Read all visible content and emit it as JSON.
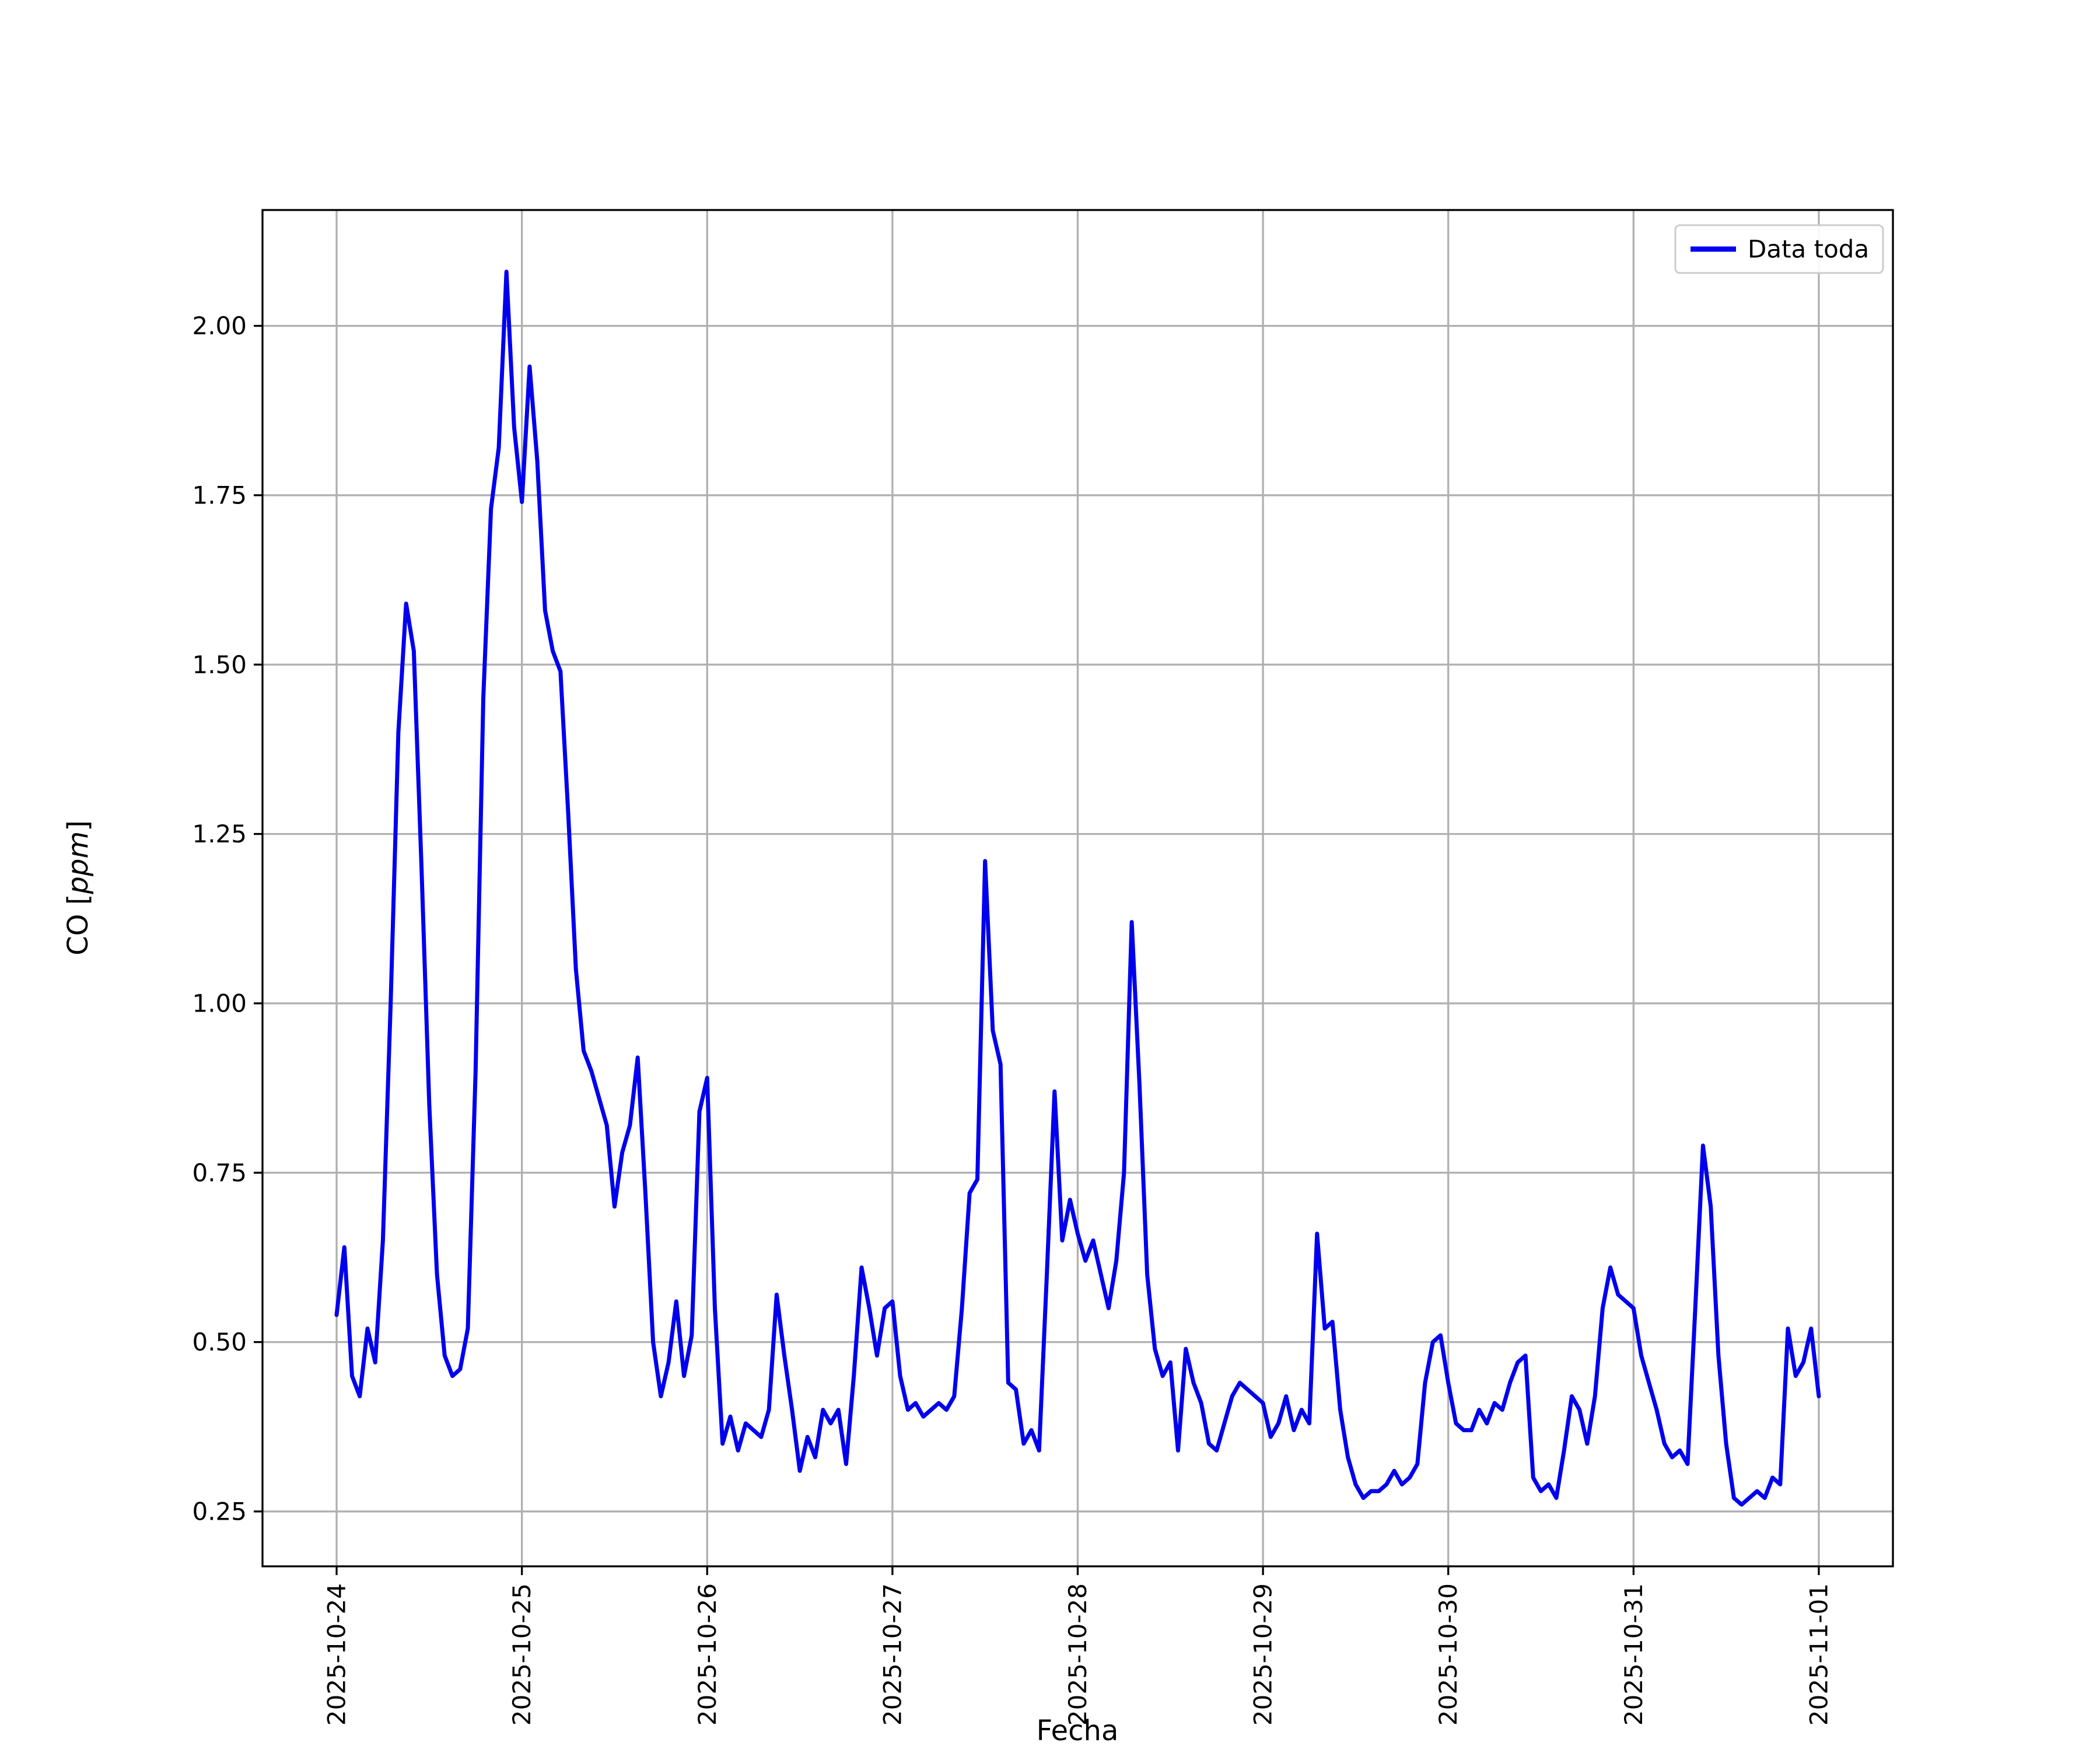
{
  "figure": {
    "background": "#ffffff",
    "xlabel": "Fecha",
    "ylabel_prefix": "CO [",
    "ylabel_italic": "ppm",
    "ylabel_suffix": "]",
    "legend": {
      "label": "Data toda"
    }
  },
  "chart_data": {
    "type": "line",
    "title": "",
    "xlabel": "Fecha",
    "ylabel": "CO [ppm]",
    "legend_position": "upper right",
    "grid": true,
    "series_name": "Data toda",
    "line_color": "#0000ee",
    "grid_color": "#b0b0b0",
    "spine_color": "#000000",
    "x_start": "2025-10-24 00:00",
    "x_step_hours": 1,
    "x_tick_hours": [
      0,
      24,
      48,
      72,
      96,
      120,
      144,
      168,
      192
    ],
    "x_tick_labels": [
      "2025-10-24",
      "2025-10-25",
      "2025-10-26",
      "2025-10-27",
      "2025-10-28",
      "2025-10-29",
      "2025-10-30",
      "2025-10-31",
      "2025-11-01"
    ],
    "y_ticks": [
      0.25,
      0.5,
      0.75,
      1.0,
      1.25,
      1.5,
      1.75,
      2.0
    ],
    "xlim_hours": [
      -9.6,
      201.6
    ],
    "ylim": [
      0.169,
      2.171
    ],
    "values": [
      0.54,
      0.64,
      0.45,
      0.42,
      0.52,
      0.47,
      0.65,
      1.0,
      1.4,
      1.59,
      1.52,
      1.2,
      0.85,
      0.6,
      0.48,
      0.45,
      0.46,
      0.52,
      0.9,
      1.45,
      1.73,
      1.82,
      2.08,
      1.85,
      1.74,
      1.94,
      1.8,
      1.58,
      1.52,
      1.49,
      1.28,
      1.05,
      0.93,
      0.9,
      0.86,
      0.82,
      0.7,
      0.78,
      0.82,
      0.92,
      0.72,
      0.5,
      0.42,
      0.47,
      0.56,
      0.45,
      0.51,
      0.84,
      0.89,
      0.55,
      0.35,
      0.39,
      0.34,
      0.38,
      0.37,
      0.36,
      0.4,
      0.57,
      0.48,
      0.4,
      0.31,
      0.36,
      0.33,
      0.4,
      0.38,
      0.4,
      0.32,
      0.45,
      0.61,
      0.55,
      0.48,
      0.55,
      0.56,
      0.45,
      0.4,
      0.41,
      0.39,
      0.4,
      0.41,
      0.4,
      0.42,
      0.55,
      0.72,
      0.74,
      1.21,
      0.96,
      0.91,
      0.44,
      0.43,
      0.35,
      0.37,
      0.34,
      0.6,
      0.87,
      0.65,
      0.71,
      0.66,
      0.62,
      0.65,
      0.6,
      0.55,
      0.62,
      0.75,
      1.12,
      0.88,
      0.6,
      0.49,
      0.45,
      0.47,
      0.34,
      0.49,
      0.44,
      0.41,
      0.35,
      0.34,
      0.38,
      0.42,
      0.44,
      0.43,
      0.42,
      0.41,
      0.36,
      0.38,
      0.42,
      0.37,
      0.4,
      0.38,
      0.66,
      0.52,
      0.53,
      0.4,
      0.33,
      0.29,
      0.27,
      0.28,
      0.28,
      0.29,
      0.31,
      0.29,
      0.3,
      0.32,
      0.44,
      0.5,
      0.51,
      0.44,
      0.38,
      0.37,
      0.37,
      0.4,
      0.38,
      0.41,
      0.4,
      0.44,
      0.47,
      0.48,
      0.3,
      0.28,
      0.29,
      0.27,
      0.34,
      0.42,
      0.4,
      0.35,
      0.42,
      0.55,
      0.61,
      0.57,
      0.56,
      0.55,
      0.48,
      0.44,
      0.4,
      0.35,
      0.33,
      0.34,
      0.32,
      0.55,
      0.79,
      0.7,
      0.48,
      0.35,
      0.27,
      0.26,
      0.27,
      0.28,
      0.27,
      0.3,
      0.29,
      0.52,
      0.45,
      0.47,
      0.52,
      0.42
    ]
  }
}
